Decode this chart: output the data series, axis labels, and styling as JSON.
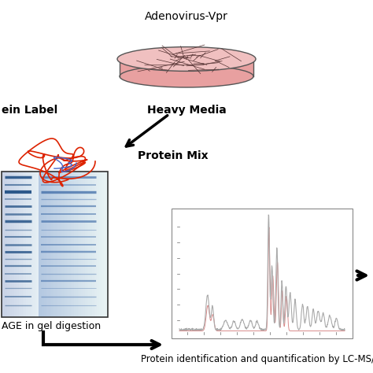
{
  "title": "Adenovirus-Vpr",
  "heavy_media_label": "Heavy Media",
  "protein_label_text": "ein Label",
  "protein_mix_label": "Protein Mix",
  "gel_label": "AGE in gel digestion",
  "ms_label": "Protein identification and quantification by LC-MS/M",
  "bg_color": "#ffffff",
  "petri_dish_fill": "#e8a0a0",
  "petri_dish_fill_light": "#f0c0c0",
  "petri_dish_edge": "#555555",
  "chromatogram_color": "#aaaaaa",
  "chromatogram_color2": "#cc8888",
  "protein_tangle_color1": "#dd2200",
  "protein_tangle_color2": "#4466cc"
}
